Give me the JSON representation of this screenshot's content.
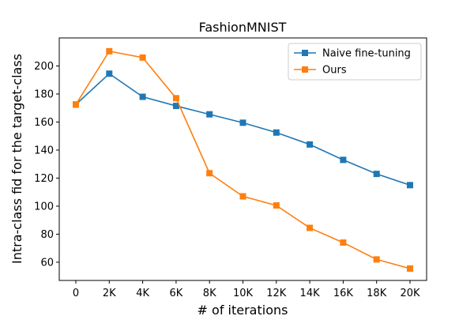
{
  "chart_data": {
    "type": "line",
    "title": "FashionMNIST",
    "xlabel": "# of iterations",
    "ylabel": "Intra-class fid for the target-class",
    "categories": [
      "0",
      "2K",
      "4K",
      "6K",
      "8K",
      "10K",
      "12K",
      "14K",
      "16K",
      "18K",
      "20K"
    ],
    "yticks": [
      60,
      80,
      100,
      120,
      140,
      160,
      180,
      200
    ],
    "ylim": [
      47,
      220
    ],
    "grid": false,
    "legend_position": "top-right",
    "series": [
      {
        "name": "Naive fine-tuning",
        "color": "#1f77b4",
        "marker": "square",
        "values": [
          172.5,
          194.5,
          178,
          171.5,
          165.5,
          159.5,
          152.5,
          144,
          133,
          123,
          115
        ]
      },
      {
        "name": "Ours",
        "color": "#ff7f0e",
        "marker": "square",
        "values": [
          172.5,
          210.5,
          206,
          177,
          123.5,
          107,
          100.5,
          84.5,
          74,
          62,
          55.5
        ]
      }
    ]
  }
}
